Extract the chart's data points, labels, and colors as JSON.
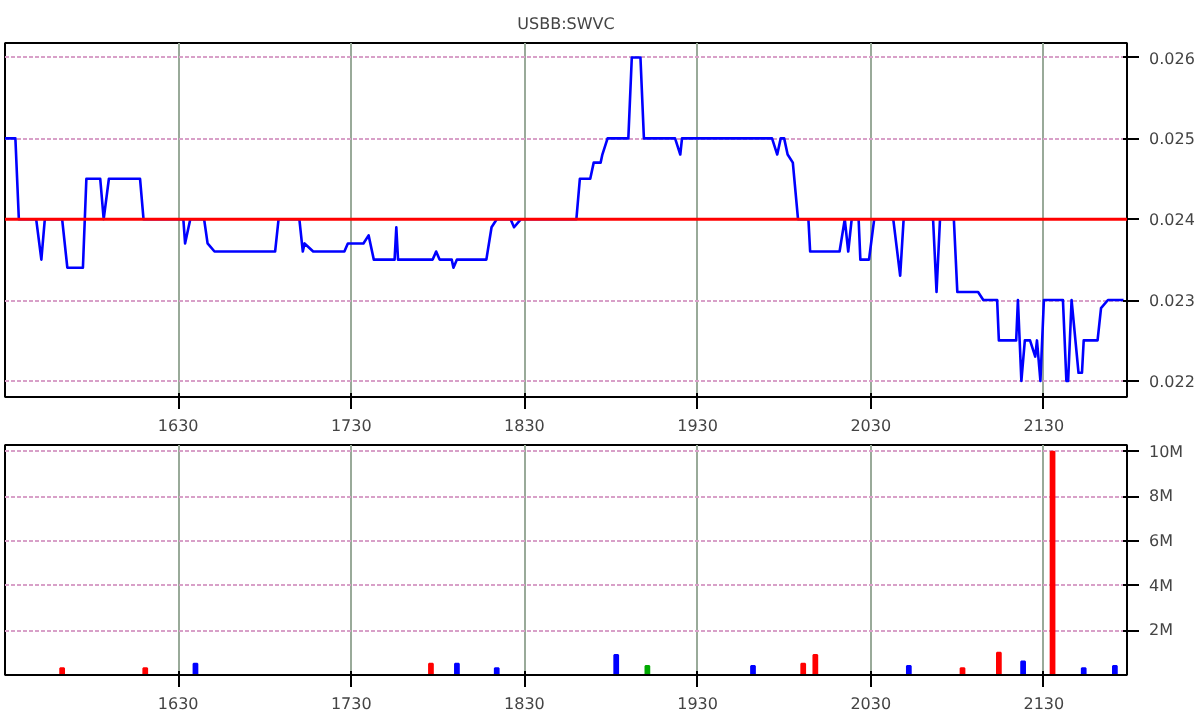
{
  "chart_data": [
    {
      "type": "line",
      "title": "USBB:SWVC",
      "x": [
        1530,
        1536,
        1538,
        1548,
        1551,
        1553,
        1563,
        1566,
        1575,
        1577,
        1585,
        1587,
        1590,
        1608,
        1610,
        1633,
        1634,
        1637,
        1645,
        1647,
        1651,
        1686,
        1688,
        1700,
        1702,
        1703,
        1708,
        1726,
        1728,
        1737,
        1740,
        1743,
        1755,
        1756,
        1757,
        1777,
        1779,
        1781,
        1788,
        1789,
        1791,
        1808,
        1811,
        1814,
        1822,
        1824,
        1828,
        1860,
        1862,
        1868,
        1870,
        1874,
        1875,
        1878,
        1890,
        1892,
        1897,
        1899,
        1917,
        1920,
        1921,
        1973,
        1976,
        1978,
        1980,
        1982,
        1985,
        1988,
        1994,
        1995,
        2012,
        2015,
        2017,
        2019,
        2023,
        2024,
        2029,
        2032,
        2043,
        2047,
        2049,
        2066,
        2068,
        2070,
        2078,
        2080,
        2092,
        2095,
        2103,
        2104,
        2114,
        2115,
        2117,
        2119,
        2122,
        2125,
        2126,
        2128,
        2130,
        2141,
        2143,
        2144,
        2146,
        2150,
        2152,
        2153,
        2161,
        2163,
        2167,
        2176
      ],
      "series": [
        {
          "color": "#0000ff",
          "values": [
            0.025,
            0.025,
            0.024,
            0.024,
            0.0235,
            0.024,
            0.024,
            0.0234,
            0.0234,
            0.0245,
            0.0245,
            0.024,
            0.0245,
            0.0245,
            0.024,
            0.024,
            0.0237,
            0.024,
            0.024,
            0.0237,
            0.0236,
            0.0236,
            0.024,
            0.024,
            0.0236,
            0.0237,
            0.0236,
            0.0236,
            0.0237,
            0.0237,
            0.0238,
            0.0235,
            0.0235,
            0.0239,
            0.0235,
            0.0235,
            0.0236,
            0.0235,
            0.0235,
            0.0234,
            0.0235,
            0.0235,
            0.0239,
            0.024,
            0.024,
            0.0239,
            0.024,
            0.024,
            0.0245,
            0.0245,
            0.0247,
            0.0247,
            0.0248,
            0.025,
            0.025,
            0.026,
            0.026,
            0.025,
            0.025,
            0.0248,
            0.025,
            0.025,
            0.0248,
            0.025,
            0.025,
            0.0248,
            0.0247,
            0.024,
            0.024,
            0.0236,
            0.0236,
            0.024,
            0.0236,
            0.024,
            0.024,
            0.0235,
            0.0235,
            0.024,
            0.024,
            0.0233,
            0.024,
            0.024,
            0.0231,
            0.024,
            0.024,
            0.0231,
            0.0231,
            0.023,
            0.023,
            0.0225,
            0.0225,
            0.023,
            0.022,
            0.0225,
            0.0225,
            0.0223,
            0.0225,
            0.022,
            0.023,
            0.023,
            0.022,
            0.022,
            0.023,
            0.0221,
            0.0221,
            0.0225,
            0.0225,
            0.0229,
            0.023,
            0.023
          ]
        }
      ],
      "xlim": [
        1530,
        2178
      ],
      "ylim": [
        0.0218,
        0.02618
      ],
      "xticks": [
        1630,
        1730,
        1830,
        1930,
        2030,
        2130
      ],
      "yticks": [
        0.022,
        0.023,
        0.024,
        0.025,
        0.026
      ],
      "ref_lines": [
        {
          "axis": "y",
          "value": 0.024,
          "color": "#ff0000"
        }
      ],
      "grid": true
    },
    {
      "type": "bar",
      "x": [
        1563,
        1611,
        1640,
        1776,
        1791,
        1814,
        1883,
        1901,
        1962,
        1991,
        1998,
        2052,
        2083,
        2104,
        2118,
        2135,
        2153,
        2171
      ],
      "values": [
        300000,
        300000,
        500000,
        500000,
        500000,
        300000,
        900000,
        400000,
        400000,
        500000,
        900000,
        400000,
        300000,
        1000000,
        600000,
        10000000,
        300000,
        400000
      ],
      "colors": [
        "#ff0000",
        "#ff0000",
        "#0000ff",
        "#ff0000",
        "#0000ff",
        "#0000ff",
        "#0000ff",
        "#00aa00",
        "#0000ff",
        "#ff0000",
        "#ff0000",
        "#0000ff",
        "#ff0000",
        "#ff0000",
        "#0000ff",
        "#ff0000",
        "#0000ff",
        "#0000ff"
      ],
      "xlim": [
        1530,
        2178
      ],
      "ylim": [
        0,
        10300000
      ],
      "xticks": [
        1630,
        1730,
        1830,
        1930,
        2030,
        2130
      ],
      "yticks": [
        {
          "value": 2000000,
          "label": "2M"
        },
        {
          "value": 4000000,
          "label": "4M"
        },
        {
          "value": 6000000,
          "label": "6M"
        },
        {
          "value": 8000000,
          "label": "8M"
        },
        {
          "value": 10000000,
          "label": "10M"
        }
      ],
      "grid": true
    }
  ]
}
